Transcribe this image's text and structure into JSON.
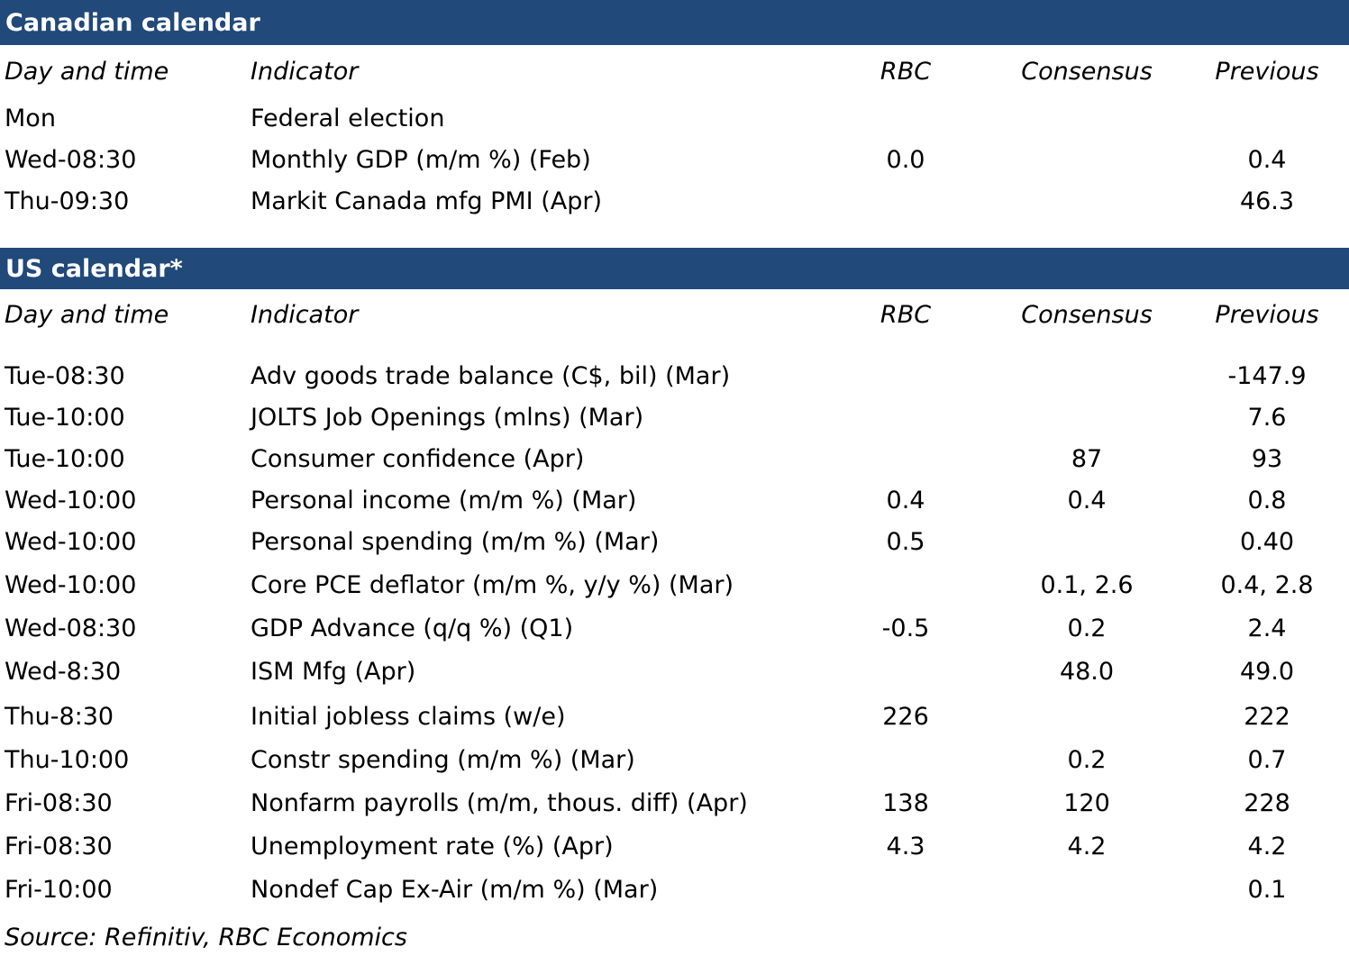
{
  "canadian": {
    "title": "Canadian calendar",
    "headers": {
      "day": "Day and time",
      "indicator": "Indicator",
      "rbc": "RBC",
      "consensus": "Consensus",
      "previous": "Previous"
    },
    "rows": [
      {
        "day": "Mon",
        "indicator": "Federal election",
        "rbc": "",
        "consensus": "",
        "previous": ""
      },
      {
        "day": "Wed-08:30",
        "indicator": "Monthly GDP (m/m %) (Feb)",
        "rbc": "0.0",
        "consensus": "",
        "previous": "0.4"
      },
      {
        "day": "Thu-09:30",
        "indicator": "Markit Canada mfg PMI (Apr)",
        "rbc": "",
        "consensus": "",
        "previous": "46.3"
      }
    ]
  },
  "us": {
    "title": "US calendar*",
    "headers": {
      "day": "Day and time",
      "indicator": "Indicator",
      "rbc": "RBC",
      "consensus": "Consensus",
      "previous": "Previous"
    },
    "rows": [
      {
        "day": "Tue-08:30",
        "indicator": "Adv goods trade balance (C$, bil) (Mar)",
        "rbc": "",
        "consensus": "",
        "previous": "-147.9"
      },
      {
        "day": "Tue-10:00",
        "indicator": "JOLTS Job Openings (mlns) (Mar)",
        "rbc": "",
        "consensus": "",
        "previous": "7.6"
      },
      {
        "day": "Tue-10:00",
        "indicator": "Consumer confidence (Apr)",
        "rbc": "",
        "consensus": "87",
        "previous": "93"
      },
      {
        "day": "Wed-10:00",
        "indicator": "Personal income (m/m %) (Mar)",
        "rbc": "0.4",
        "consensus": "0.4",
        "previous": "0.8"
      },
      {
        "day": "Wed-10:00",
        "indicator": "Personal spending (m/m %) (Mar)",
        "rbc": "0.5",
        "consensus": "",
        "previous": "0.40"
      },
      {
        "day": "Wed-10:00",
        "indicator": "Core PCE deflator (m/m %, y/y %) (Mar)",
        "rbc": "",
        "consensus": "0.1, 2.6",
        "previous": "0.4, 2.8"
      },
      {
        "day": "Wed-08:30",
        "indicator": "GDP Advance (q/q %) (Q1)",
        "rbc": "-0.5",
        "consensus": "0.2",
        "previous": "2.4"
      },
      {
        "day": "Wed-8:30",
        "indicator": "ISM Mfg (Apr)",
        "rbc": "",
        "consensus": "48.0",
        "previous": "49.0"
      },
      {
        "day": "Thu-8:30",
        "indicator": "Initial jobless claims (w/e)",
        "rbc": "226",
        "consensus": "",
        "previous": "222"
      },
      {
        "day": "Thu-10:00",
        "indicator": "Constr spending (m/m %) (Mar)",
        "rbc": "",
        "consensus": "0.2",
        "previous": "0.7"
      },
      {
        "day": "Fri-08:30",
        "indicator": "Nonfarm payrolls (m/m, thous. diff) (Apr)",
        "rbc": "138",
        "consensus": "120",
        "previous": "228"
      },
      {
        "day": "Fri-08:30",
        "indicator": "Unemployment rate (%) (Apr)",
        "rbc": "4.3",
        "consensus": "4.2",
        "previous": "4.2"
      },
      {
        "day": "Fri-10:00",
        "indicator": "Nondef Cap Ex-Air (m/m %) (Mar)",
        "rbc": "",
        "consensus": "",
        "previous": "0.1"
      }
    ]
  },
  "source": "Source: Refinitiv,  RBC Economics",
  "colors": {
    "band": "#21497a",
    "band_text": "#ffffff"
  }
}
